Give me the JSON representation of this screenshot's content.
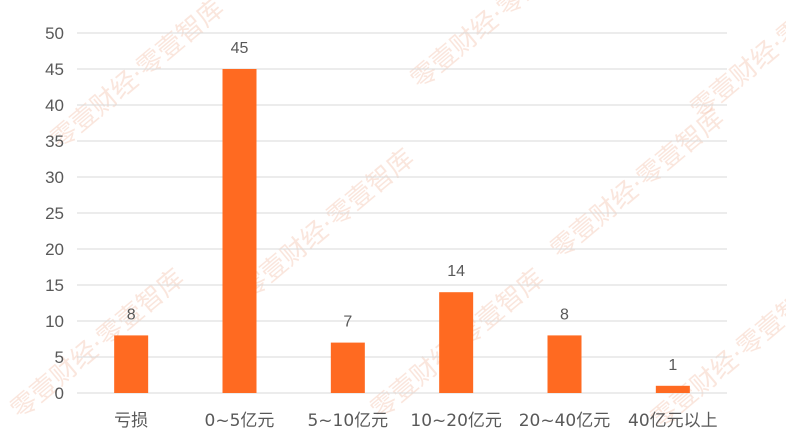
{
  "watermark": "零壹财经·零壹智库",
  "chart_data": {
    "type": "bar",
    "title": "",
    "xlabel": "",
    "ylabel": "",
    "categories": [
      "亏损",
      "0~5亿元",
      "5~10亿元",
      "10~20亿元",
      "20~40亿元",
      "40亿元以上"
    ],
    "values": [
      8,
      45,
      7,
      14,
      8,
      1
    ],
    "ylim": [
      0,
      50
    ],
    "yticks": [
      0,
      5,
      10,
      15,
      20,
      25,
      30,
      35,
      40,
      45,
      50
    ],
    "grid": true,
    "data_labels": true,
    "bar_color": "#FF6A21",
    "grid_color": "#D9D9D9"
  }
}
